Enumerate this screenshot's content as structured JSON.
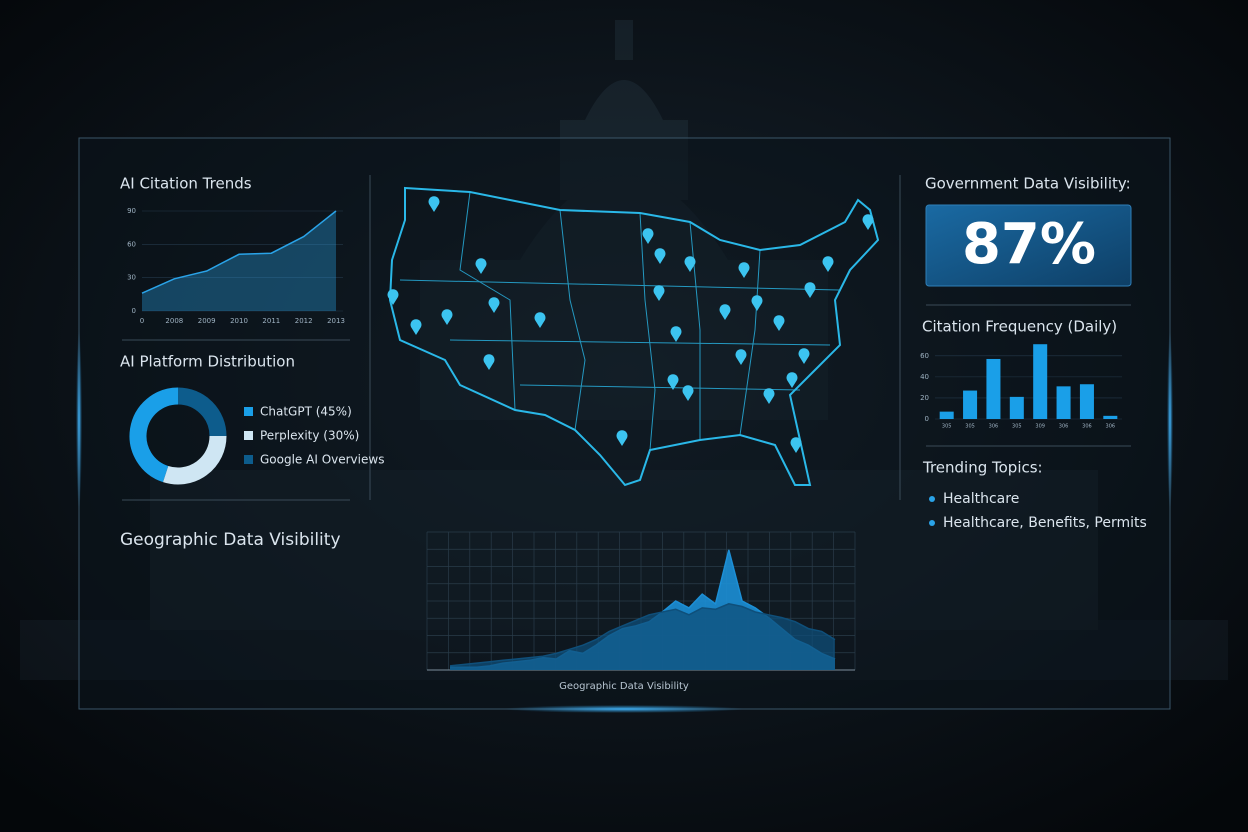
{
  "chart_data": [
    {
      "type": "area",
      "title": "AI Citation Trends",
      "categories": [
        "0",
        "2008",
        "2009",
        "2010",
        "2011",
        "2012",
        "2013"
      ],
      "values": [
        16,
        29,
        36,
        51,
        52,
        67,
        90
      ],
      "color": "#2aa3e8",
      "ylim": [
        0,
        90
      ],
      "yticks": [
        0,
        30,
        60,
        90
      ]
    },
    {
      "type": "pie",
      "title": "AI Platform Distribution",
      "series": [
        {
          "name": "ChatGPT (45%)",
          "color": "#1a9fe8",
          "values": [
            45
          ]
        },
        {
          "name": "Perplexity (30%)",
          "color": "#cfe6f3",
          "values": [
            30
          ]
        },
        {
          "name": "Google AI Overviews",
          "color": "#0d5c8c",
          "values": [
            25
          ]
        }
      ]
    },
    {
      "type": "bar",
      "title": "Citation Frequency (Daily)",
      "categories": [
        "305",
        "305",
        "306",
        "305",
        "309",
        "306",
        "306",
        "306"
      ],
      "values": [
        7,
        27,
        57,
        21,
        71,
        31,
        33,
        3
      ],
      "color": "#1a9fe8",
      "ylim": [
        0,
        75
      ],
      "yticks": [
        0,
        20,
        40,
        60
      ]
    },
    {
      "type": "area",
      "title": "Geographic Data Visibility",
      "x_label": "Geographic Data Visibility",
      "categories": [
        null,
        null,
        null,
        null,
        null,
        null,
        null,
        null,
        null,
        null,
        null,
        null,
        null,
        null,
        null,
        null,
        null,
        null,
        null,
        null,
        null,
        null,
        null,
        null,
        null,
        null,
        null,
        null,
        null,
        null
      ],
      "ylim": [
        0,
        100
      ],
      "series": [
        {
          "color": "#1c8fd6",
          "values": [
            2,
            2,
            2,
            3,
            5,
            6,
            7,
            9,
            8,
            14,
            12,
            18,
            25,
            30,
            32,
            35,
            42,
            50,
            45,
            55,
            48,
            87,
            50,
            45,
            38,
            30,
            22,
            18,
            12,
            8
          ]
        },
        {
          "color": "#0f4f7a",
          "values": [
            3,
            4,
            5,
            6,
            7,
            8,
            9,
            10,
            12,
            15,
            18,
            22,
            28,
            32,
            36,
            40,
            42,
            44,
            40,
            45,
            44,
            48,
            46,
            42,
            40,
            38,
            35,
            30,
            28,
            22
          ]
        }
      ]
    }
  ],
  "kpi": {
    "label": "Government Data Visibility:",
    "value": "87%"
  },
  "trending": {
    "title": "Trending Topics:",
    "items": [
      "Healthcare",
      "Healthcare, Benefits, Permits"
    ]
  }
}
